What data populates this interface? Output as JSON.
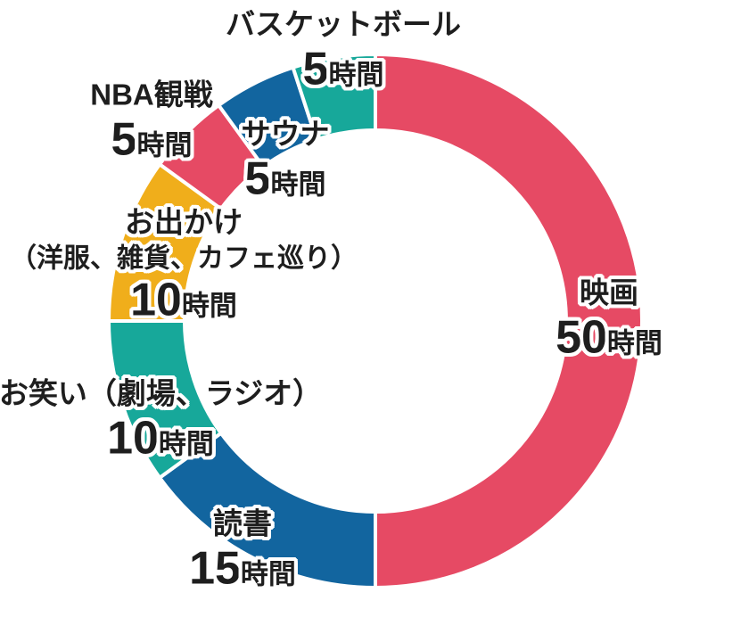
{
  "chart_data": {
    "type": "pie",
    "variant": "donut",
    "title": "",
    "unit": "時間",
    "total_value": 100,
    "start_angle": "top",
    "direction": "clockwise",
    "legend": "none",
    "palette": {
      "pink": "#E64A64",
      "blue": "#12659F",
      "teal": "#17A89A",
      "yellow": "#F0AE1B"
    },
    "segments": [
      {
        "id": "movie",
        "label": "映画",
        "value": 50,
        "unit": "時間",
        "color": "#E64A64"
      },
      {
        "id": "reading",
        "label": "読書",
        "value": 15,
        "unit": "時間",
        "color": "#12659F"
      },
      {
        "id": "comedy",
        "label": "お笑い（劇場、ラジオ）",
        "value": 10,
        "unit": "時間",
        "color": "#17A89A"
      },
      {
        "id": "outing",
        "label": "お出かけ（洋服、雑貨、カフェ巡り）",
        "label_line1": "お出かけ",
        "label_line2": "（洋服、雑貨、カフェ巡り）",
        "value": 10,
        "unit": "時間",
        "color": "#F0AE1B"
      },
      {
        "id": "nba",
        "label": "NBA観戦",
        "value": 5,
        "unit": "時間",
        "color": "#E64A64"
      },
      {
        "id": "sauna",
        "label": "サウナ",
        "value": 5,
        "unit": "時間",
        "color": "#12659F"
      },
      {
        "id": "basketball",
        "label": "バスケットボール",
        "value": 5,
        "unit": "時間",
        "color": "#17A89A"
      }
    ]
  }
}
